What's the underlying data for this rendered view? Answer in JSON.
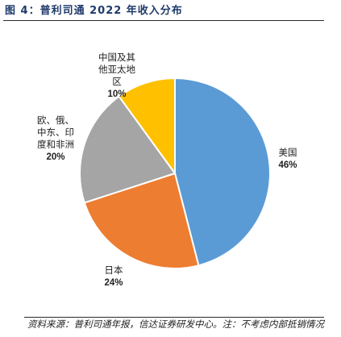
{
  "figure": {
    "title": "图 4：普利司通 2022 年收入分布",
    "source": "资料来源：普利司通年报，信达证券研发中心。注：不考虑内部抵销情况"
  },
  "chart_data": {
    "type": "pie",
    "title": "",
    "slices": [
      {
        "label": [
          "美国"
        ],
        "value": 46,
        "value_label": "46%",
        "color": "#5b9bd5"
      },
      {
        "label": [
          "日本"
        ],
        "value": 24,
        "value_label": "24%",
        "color": "#ed7d31"
      },
      {
        "label": [
          "欧、俄、",
          "中东、印",
          "度和非洲"
        ],
        "value": 20,
        "value_label": "20%",
        "color": "#a5a5a5"
      },
      {
        "label": [
          "中国及其",
          "他亚太地",
          "区"
        ],
        "value": 10,
        "value_label": "10%",
        "color": "#ffc000"
      }
    ]
  }
}
